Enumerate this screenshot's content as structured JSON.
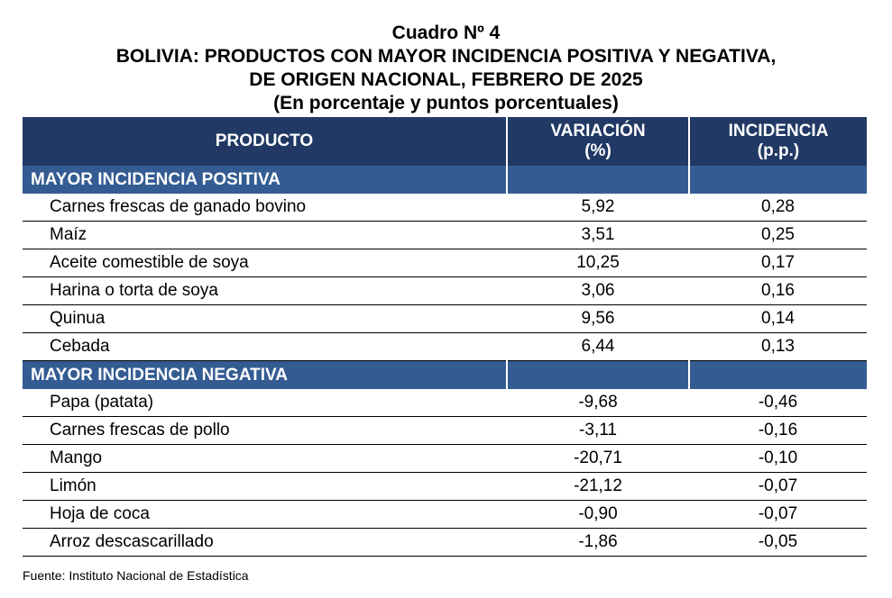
{
  "header": {
    "line1": "Cuadro Nº 4",
    "line2": "BOLIVIA: PRODUCTOS CON MAYOR INCIDENCIA POSITIVA Y NEGATIVA,",
    "line3": "DE ORIGEN NACIONAL, FEBRERO DE 2025",
    "line4": "(En porcentaje y puntos porcentuales)"
  },
  "columns": {
    "producto": "PRODUCTO",
    "variacion_1": "VARIACIÓN",
    "variacion_2": "(%)",
    "incidencia_1": "INCIDENCIA",
    "incidencia_2": "(p.p.)"
  },
  "sections": [
    {
      "title": "MAYOR INCIDENCIA POSITIVA",
      "rows": [
        {
          "producto": "Carnes frescas de ganado bovino",
          "variacion": "5,92",
          "incidencia": "0,28"
        },
        {
          "producto": "Maíz",
          "variacion": "3,51",
          "incidencia": "0,25"
        },
        {
          "producto": "Aceite comestible de soya",
          "variacion": "10,25",
          "incidencia": "0,17"
        },
        {
          "producto": "Harina o torta de soya",
          "variacion": "3,06",
          "incidencia": "0,16"
        },
        {
          "producto": "Quinua",
          "variacion": "9,56",
          "incidencia": "0,14"
        },
        {
          "producto": "Cebada",
          "variacion": "6,44",
          "incidencia": "0,13"
        }
      ]
    },
    {
      "title": "MAYOR INCIDENCIA NEGATIVA",
      "rows": [
        {
          "producto": "Papa (patata)",
          "variacion": "-9,68",
          "incidencia": "-0,46"
        },
        {
          "producto": "Carnes frescas de pollo",
          "variacion": "-3,11",
          "incidencia": "-0,16"
        },
        {
          "producto": "Mango",
          "variacion": "-20,71",
          "incidencia": "-0,10"
        },
        {
          "producto": "Limón",
          "variacion": "-21,12",
          "incidencia": "-0,07"
        },
        {
          "producto": "Hoja de coca",
          "variacion": "-0,90",
          "incidencia": "-0,07"
        },
        {
          "producto": "Arroz descascarillado",
          "variacion": "-1,86",
          "incidencia": "-0,05"
        }
      ]
    }
  ],
  "footer": {
    "source": "Fuente: Instituto Nacional de Estadística"
  }
}
